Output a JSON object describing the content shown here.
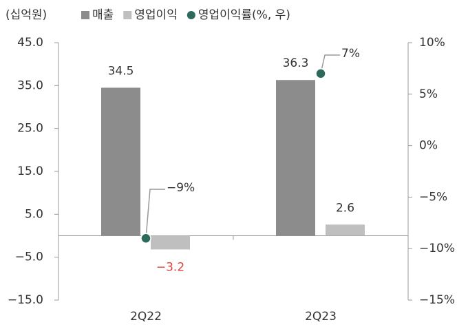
{
  "chart_data": {
    "type": "bar",
    "unit_label": "(십억원)",
    "categories": [
      "2Q22",
      "2Q23"
    ],
    "series": [
      {
        "name": "매출",
        "color": "#8c8c8c",
        "values": [
          34.5,
          36.3
        ]
      },
      {
        "name": "영업이익",
        "color": "#bfbfbf",
        "values": [
          -3.2,
          2.6
        ],
        "value_labels": [
          "−3.2",
          "2.6"
        ],
        "label_colors": [
          "#e0413a",
          "#333333"
        ]
      },
      {
        "name": "영업이익률(%, 우)",
        "type": "scatter",
        "axis": "y2",
        "color": "#2d6a5c",
        "values": [
          -9,
          7
        ],
        "value_labels": [
          "−9%",
          "7%"
        ]
      }
    ],
    "ylim": [
      -15,
      45
    ],
    "yticks": [
      {
        "value": 45,
        "label": "45.0"
      },
      {
        "value": 35,
        "label": "35.0"
      },
      {
        "value": 25,
        "label": "25.0"
      },
      {
        "value": 15,
        "label": "15.0"
      },
      {
        "value": 5,
        "label": "5.0"
      },
      {
        "value": -5,
        "label": "−5.0"
      },
      {
        "value": -15,
        "label": "−15.0"
      }
    ],
    "y2lim": [
      -15,
      10
    ],
    "y2ticks": [
      {
        "value": 10,
        "label": "10%"
      },
      {
        "value": 5,
        "label": "5%"
      },
      {
        "value": 0,
        "label": "0%"
      },
      {
        "value": -5,
        "label": "−5%"
      },
      {
        "value": -10,
        "label": "−10%"
      },
      {
        "value": -15,
        "label": "−15%"
      }
    ]
  }
}
